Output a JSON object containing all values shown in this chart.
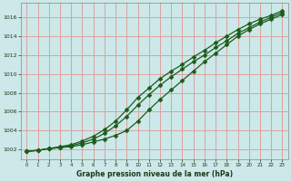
{
  "title": "Graphe pression niveau de la mer (hPa)",
  "bg_color": "#cce8e8",
  "grid_color": "#dda0a0",
  "line_color": "#1a5c1a",
  "x_labels": [
    "0",
    "1",
    "2",
    "3",
    "4",
    "5",
    "6",
    "7",
    "8",
    "9",
    "10",
    "11",
    "12",
    "13",
    "14",
    "15",
    "16",
    "17",
    "18",
    "19",
    "20",
    "21",
    "22",
    "23"
  ],
  "ylim": [
    1001.0,
    1017.5
  ],
  "yticks": [
    1002,
    1004,
    1006,
    1008,
    1010,
    1012,
    1014,
    1016
  ],
  "line1": [
    1001.8,
    1001.9,
    1002.1,
    1002.2,
    1002.3,
    1002.5,
    1002.8,
    1003.1,
    1003.5,
    1004.0,
    1005.0,
    1006.2,
    1007.3,
    1008.3,
    1009.3,
    1010.3,
    1011.3,
    1012.2,
    1013.1,
    1014.0,
    1014.7,
    1015.3,
    1015.8,
    1016.3
  ],
  "line2": [
    1001.8,
    1001.9,
    1002.1,
    1002.2,
    1002.4,
    1002.7,
    1003.1,
    1003.7,
    1004.5,
    1005.5,
    1006.7,
    1007.8,
    1008.8,
    1009.7,
    1010.5,
    1011.3,
    1012.0,
    1012.8,
    1013.5,
    1014.3,
    1014.9,
    1015.5,
    1016.0,
    1016.5
  ],
  "line3": [
    1001.8,
    1001.9,
    1002.1,
    1002.3,
    1002.5,
    1002.9,
    1003.4,
    1004.1,
    1005.0,
    1006.2,
    1007.5,
    1008.5,
    1009.5,
    1010.3,
    1011.0,
    1011.8,
    1012.5,
    1013.3,
    1014.0,
    1014.7,
    1015.3,
    1015.8,
    1016.2,
    1016.7
  ]
}
